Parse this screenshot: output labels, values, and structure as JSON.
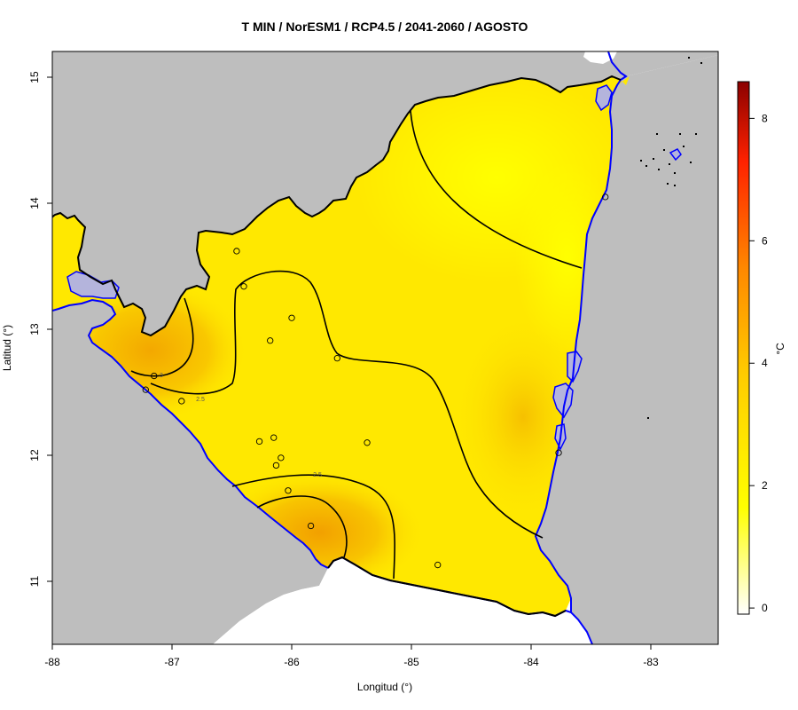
{
  "title": "T MIN / NorESM1 / RCP4.5 / 2041-2060 / AGOSTO",
  "xlabel": "Longitud (°)",
  "ylabel": "Latitud (°)",
  "x_ticks": [
    "-88",
    "-87",
    "-86",
    "-85",
    "-84",
    "-83"
  ],
  "y_ticks": [
    "15",
    "14",
    "13",
    "12",
    "11"
  ],
  "colorbar": {
    "unit": "°C",
    "ticks": [
      "0",
      "2",
      "4",
      "6",
      "8"
    ],
    "range": [
      -0.1,
      8.6
    ],
    "colors": [
      "#ffffff",
      "#ffff00",
      "#ffcc00",
      "#ff8800",
      "#ff2200",
      "#8b0000"
    ]
  },
  "colors": {
    "land_outside": "#bebebe",
    "sea": "#ffffff",
    "coastline": "#0000ff",
    "lake": "#b4b4dc",
    "warm_patch": "#f5b400",
    "base_fill": "#ffe800"
  },
  "contours": [
    {
      "label": "2.5"
    },
    {
      "label": "3"
    },
    {
      "label": "2.5"
    }
  ],
  "stations": [
    {
      "lon": -86.46,
      "lat": 13.62
    },
    {
      "lon": -86.4,
      "lat": 13.34
    },
    {
      "lon": -86.0,
      "lat": 13.09
    },
    {
      "lon": -86.18,
      "lat": 12.91
    },
    {
      "lon": -85.62,
      "lat": 12.77
    },
    {
      "lon": -87.15,
      "lat": 12.63
    },
    {
      "lon": -87.22,
      "lat": 12.52
    },
    {
      "lon": -86.92,
      "lat": 12.43
    },
    {
      "lon": -86.27,
      "lat": 12.11
    },
    {
      "lon": -86.15,
      "lat": 12.14
    },
    {
      "lon": -85.37,
      "lat": 12.1
    },
    {
      "lon": -86.09,
      "lat": 11.98
    },
    {
      "lon": -86.13,
      "lat": 11.92
    },
    {
      "lon": -86.03,
      "lat": 11.72
    },
    {
      "lon": -85.84,
      "lat": 11.44
    },
    {
      "lon": -84.78,
      "lat": 11.13
    },
    {
      "lon": -83.77,
      "lat": 12.02
    },
    {
      "lon": -83.38,
      "lat": 14.05
    }
  ]
}
